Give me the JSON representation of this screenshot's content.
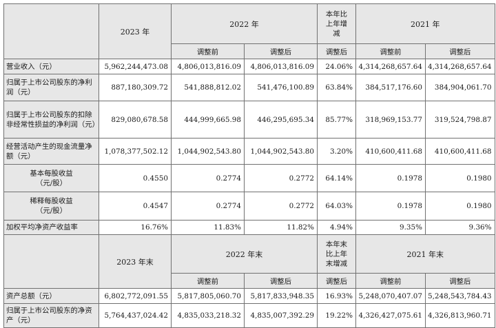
{
  "table": {
    "header1": {
      "col_2023": "2023 年",
      "col_2022": "2022 年",
      "col_change": "本年比上年增减",
      "col_2021": "2021 年",
      "before": "调整前",
      "after": "调整后",
      "after_change": "调整后"
    },
    "rows1": [
      {
        "label": "营业收入（元）",
        "v2023": "5,962,244,473.08",
        "v2022_before": "4,806,013,816.09",
        "v2022_after": "4,806,013,816.09",
        "change": "24.06%",
        "v2021_before": "4,314,268,657.64",
        "v2021_after": "4,314,268,657.64"
      },
      {
        "label": "归属于上市公司股东的净利润（元）",
        "v2023": "887,180,309.72",
        "v2022_before": "541,888,812.02",
        "v2022_after": "541,476,100.89",
        "change": "63.84%",
        "v2021_before": "384,517,176.60",
        "v2021_after": "384,904,061.70"
      },
      {
        "label": "归属于上市公司股东的扣除非经常性损益的净利润（元）",
        "v2023": "829,080,678.58",
        "v2022_before": "444,999,665.98",
        "v2022_after": "446,295,695.34",
        "change": "85.77%",
        "v2021_before": "318,969,153.77",
        "v2021_after": "319,524,798.87"
      },
      {
        "label": "经营活动产生的现金流量净额（元）",
        "v2023": "1,078,377,502.12",
        "v2022_before": "1,044,902,543.80",
        "v2022_after": "1,044,902,543.80",
        "change": "3.20%",
        "v2021_before": "410,600,411.68",
        "v2021_after": "410,600,411.68"
      },
      {
        "label": "基本每股收益（元/股）",
        "v2023": "0.4550",
        "v2022_before": "0.2774",
        "v2022_after": "0.2772",
        "change": "64.14%",
        "v2021_before": "0.1978",
        "v2021_after": "0.1980"
      },
      {
        "label": "稀释每股收益（元/股）",
        "v2023": "0.4547",
        "v2022_before": "0.2774",
        "v2022_after": "0.2772",
        "change": "64.03%",
        "v2021_before": "0.1978",
        "v2021_after": "0.1980"
      },
      {
        "label": "加权平均净资产收益率",
        "v2023": "16.76%",
        "v2022_before": "11.83%",
        "v2022_after": "11.82%",
        "change": "4.94%",
        "v2021_before": "9.35%",
        "v2021_after": "9.36%"
      }
    ],
    "header2": {
      "col_2023_end": "2023 年末",
      "col_2022_end": "2022 年末",
      "col_change_end": "本年末比上年末增减",
      "col_2021_end": "2021 年末",
      "before": "调整前",
      "after": "调整后",
      "after_change": "调整后"
    },
    "rows2": [
      {
        "label": "资产总额（元）",
        "v2023": "6,802,772,091.55",
        "v2022_before": "5,817,805,060.70",
        "v2022_after": "5,817,833,948.35",
        "change": "16.93%",
        "v2021_before": "5,248,070,407.07",
        "v2021_after": "5,248,543,784.43"
      },
      {
        "label": "归属于上市公司股东的净资产（元）",
        "v2023": "5,764,437,024.42",
        "v2022_before": "4,835,033,218.32",
        "v2022_after": "4,835,007,392.29",
        "change": "19.22%",
        "v2021_before": "4,326,427,075.61",
        "v2021_after": "4,326,813,960.71"
      }
    ]
  }
}
